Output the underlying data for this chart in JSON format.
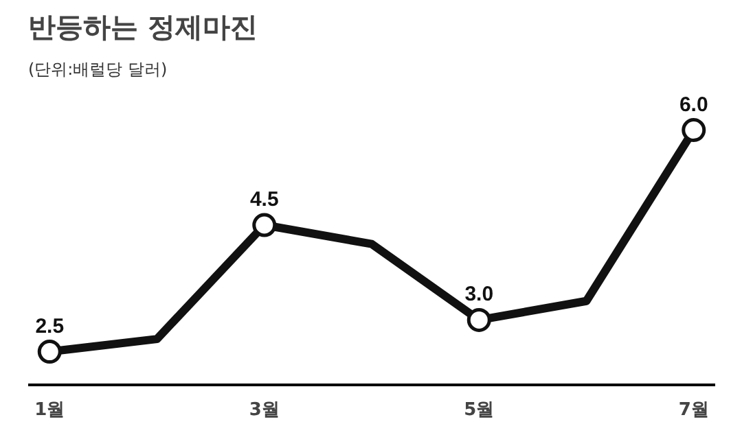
{
  "chart_data": {
    "type": "line",
    "title": "반등하는 정제마진",
    "subtitle": "(단위:배럴당 달러)",
    "categories": [
      "1월",
      null,
      "3월",
      null,
      "5월",
      null,
      "7월"
    ],
    "series": [
      {
        "color": "#111111",
        "values": [
          2.5,
          2.7,
          4.5,
          4.2,
          3.0,
          3.3,
          6.0
        ],
        "value_labels": [
          "2.5",
          null,
          "4.5",
          null,
          "3.0",
          null,
          "6.0"
        ]
      }
    ],
    "marker": "circle",
    "line_style": "solid",
    "grid": false
  }
}
